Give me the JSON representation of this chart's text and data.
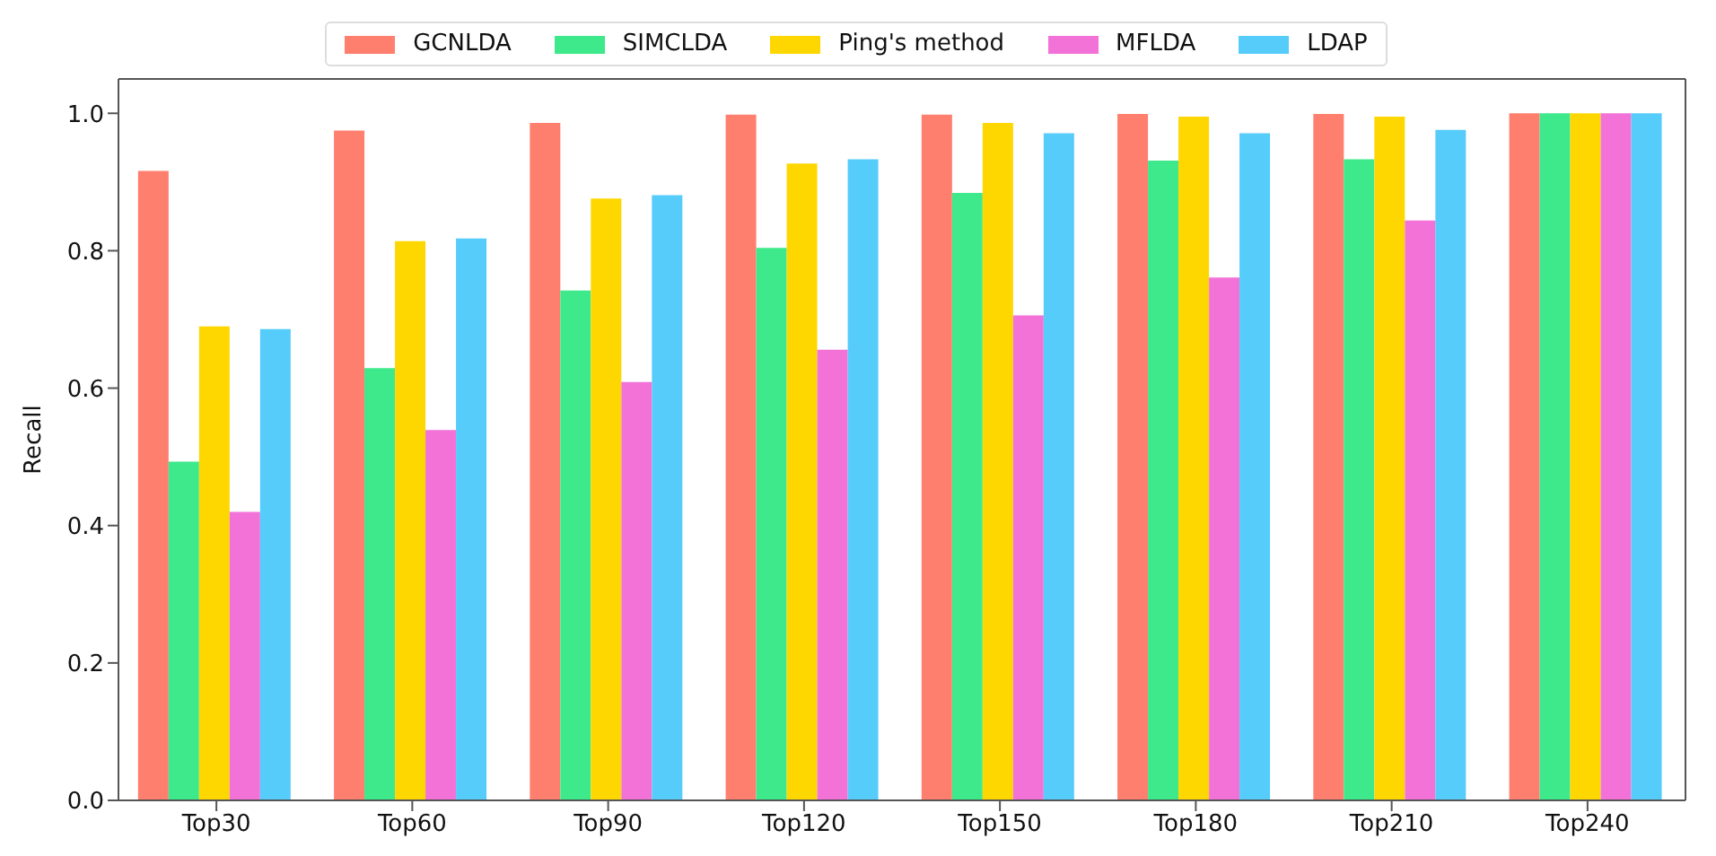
{
  "chart_data": {
    "type": "bar",
    "ylabel": "Recall",
    "categories": [
      "Top30",
      "Top60",
      "Top90",
      "Top120",
      "Top150",
      "Top180",
      "Top210",
      "Top240"
    ],
    "series": [
      {
        "name": "GCNLDA",
        "color": "#ff7f6e",
        "values": [
          0.916,
          0.975,
          0.986,
          0.998,
          0.998,
          0.999,
          0.999,
          1.0
        ]
      },
      {
        "name": "SIMCLDA",
        "color": "#3de98a",
        "values": [
          0.493,
          0.629,
          0.742,
          0.804,
          0.884,
          0.931,
          0.933,
          1.0
        ]
      },
      {
        "name": "Ping's method",
        "color": "#ffd700",
        "values": [
          0.69,
          0.814,
          0.876,
          0.927,
          0.986,
          0.995,
          0.995,
          1.0
        ]
      },
      {
        "name": "MFLDA",
        "color": "#f272d8",
        "values": [
          0.42,
          0.539,
          0.609,
          0.656,
          0.706,
          0.761,
          0.844,
          1.0
        ]
      },
      {
        "name": "LDAP",
        "color": "#56ccfb",
        "values": [
          0.686,
          0.818,
          0.881,
          0.933,
          0.971,
          0.971,
          0.976,
          1.0
        ]
      }
    ],
    "ylim": [
      0,
      1.05
    ],
    "yticks": [
      {
        "value": 0,
        "label": "0.0"
      },
      0.2,
      0.4,
      0.6,
      0.8,
      {
        "value": 1,
        "label": "1.0"
      }
    ],
    "grid": false,
    "legend": "top"
  }
}
